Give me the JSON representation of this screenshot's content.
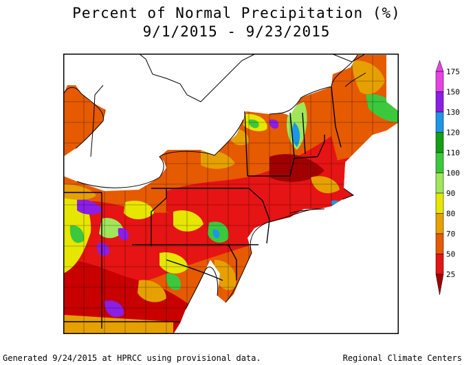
{
  "title": "Percent of Normal Precipitation (%)",
  "subtitle": "9/1/2015 - 9/23/2015",
  "legend": {
    "levels": [
      "175",
      "150",
      "130",
      "120",
      "110",
      "100",
      "90",
      "80",
      "70",
      "50",
      "25"
    ],
    "colors": {
      "175": "#e642e6",
      "150": "#8c1ee6",
      "130": "#1e96e6",
      "120": "#14a014",
      "110": "#3cc83c",
      "100": "#a0e65a",
      "90": "#e6e600",
      "80": "#e6a000",
      "70": "#e65a00",
      "50": "#e61414",
      "25": "#a00000"
    }
  },
  "footer": {
    "left": "Generated 9/24/2015 at HPRCC using provisional data.",
    "right": "Regional Climate Centers"
  }
}
